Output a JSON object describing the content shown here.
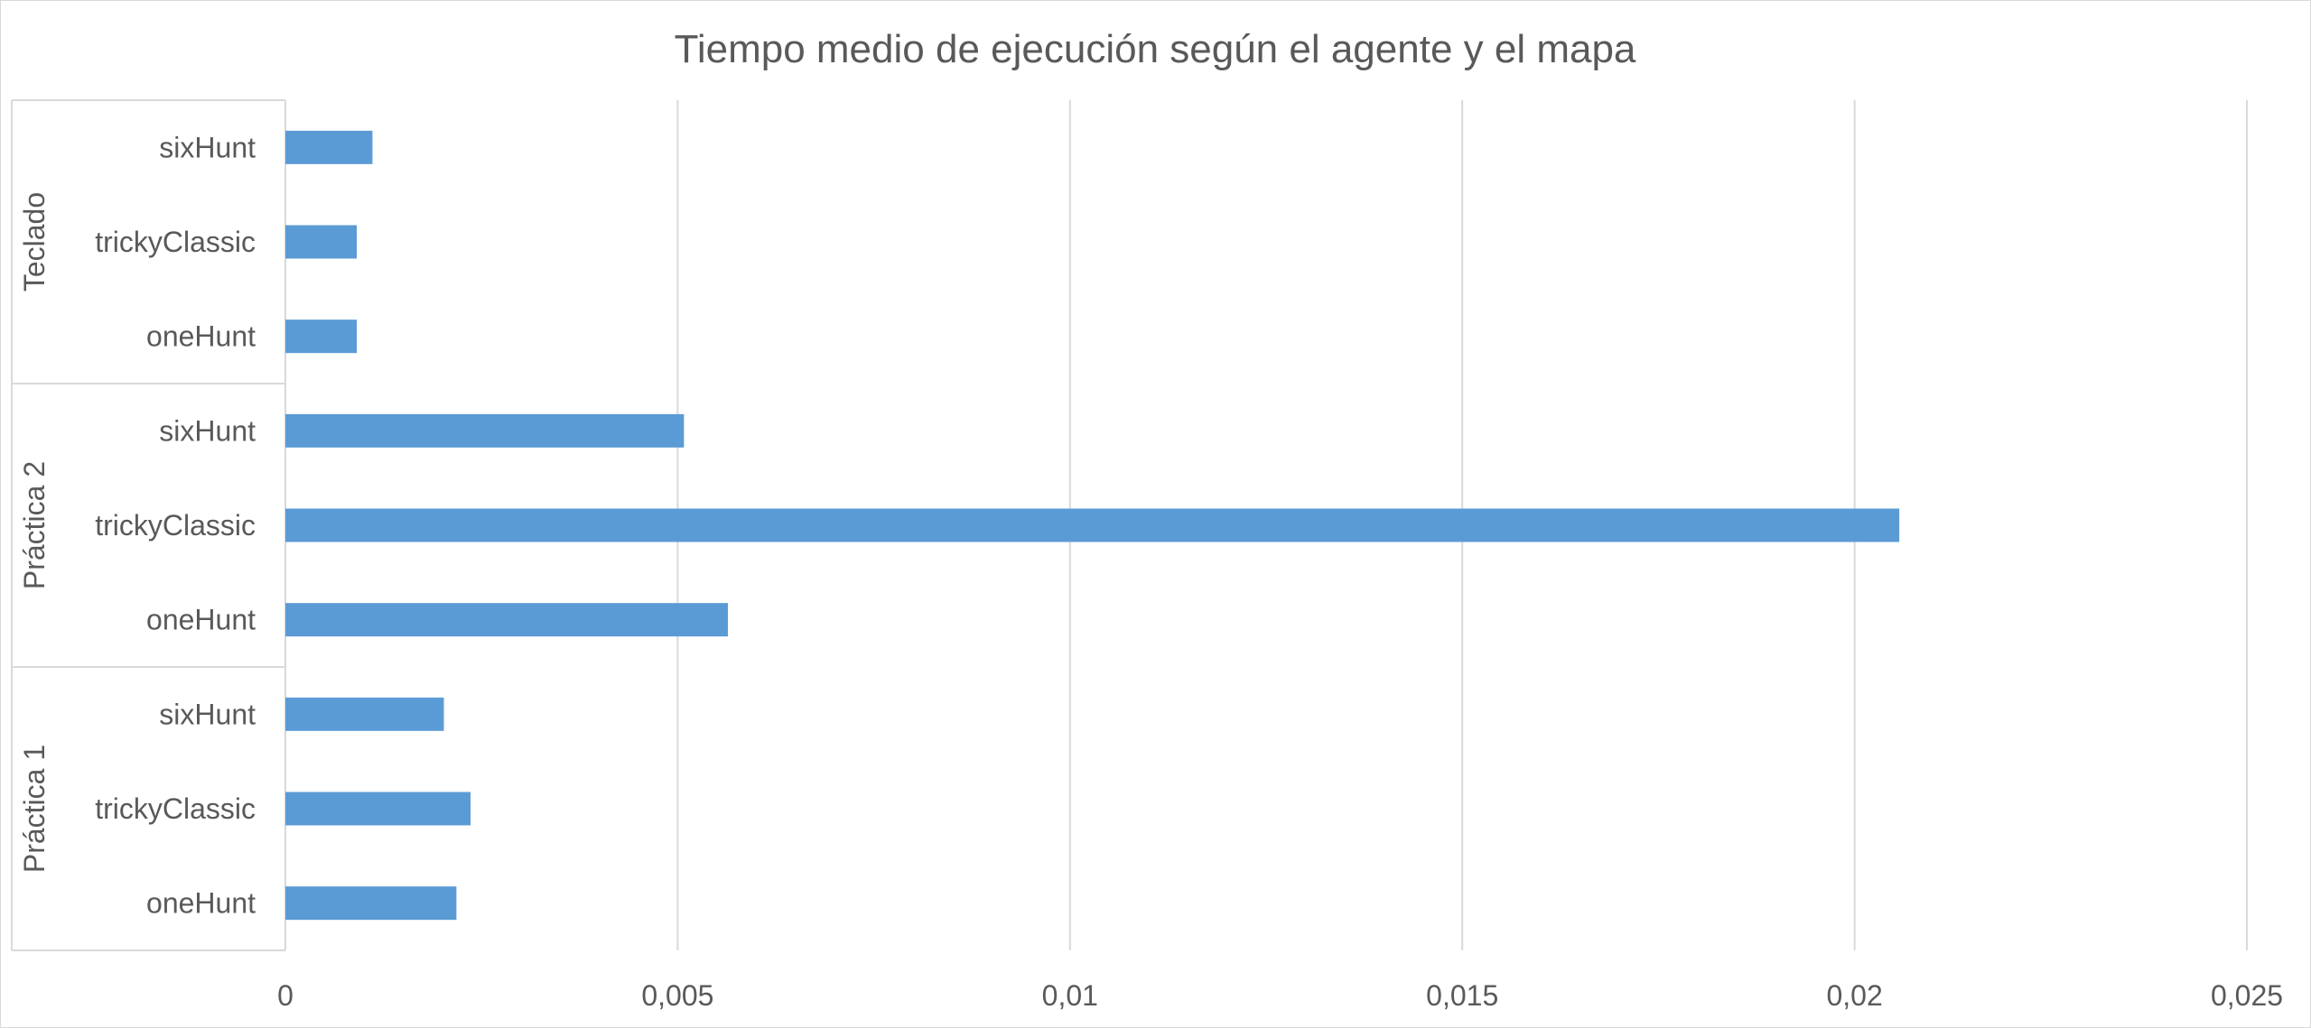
{
  "chart_data": {
    "type": "bar",
    "orientation": "horizontal",
    "title": "Tiempo medio de ejecución según el agente y el mapa",
    "xlabel": "",
    "ylabel": "",
    "xlim": [
      0,
      0.025
    ],
    "x_ticks": [
      "0",
      "0,005",
      "0,01",
      "0,015",
      "0,02",
      "0,025"
    ],
    "x_tick_values": [
      0,
      0.005,
      0.01,
      0.015,
      0.02,
      0.025
    ],
    "grid": "vertical",
    "legend": "none",
    "bar_color": "#5b9bd5",
    "groups": [
      {
        "label": "Teclado",
        "bars": [
          {
            "category": "sixHunt",
            "value": 0.00111
          },
          {
            "category": "trickyClassic",
            "value": 0.00091
          },
          {
            "category": "oneHunt",
            "value": 0.00091
          }
        ]
      },
      {
        "label": "Práctica 2",
        "bars": [
          {
            "category": "sixHunt",
            "value": 0.00508
          },
          {
            "category": "trickyClassic",
            "value": 0.02057
          },
          {
            "category": "oneHunt",
            "value": 0.00564
          }
        ]
      },
      {
        "label": "Práctica 1",
        "bars": [
          {
            "category": "sixHunt",
            "value": 0.00202
          },
          {
            "category": "trickyClassic",
            "value": 0.00236
          },
          {
            "category": "oneHunt",
            "value": 0.00218
          }
        ]
      }
    ]
  }
}
